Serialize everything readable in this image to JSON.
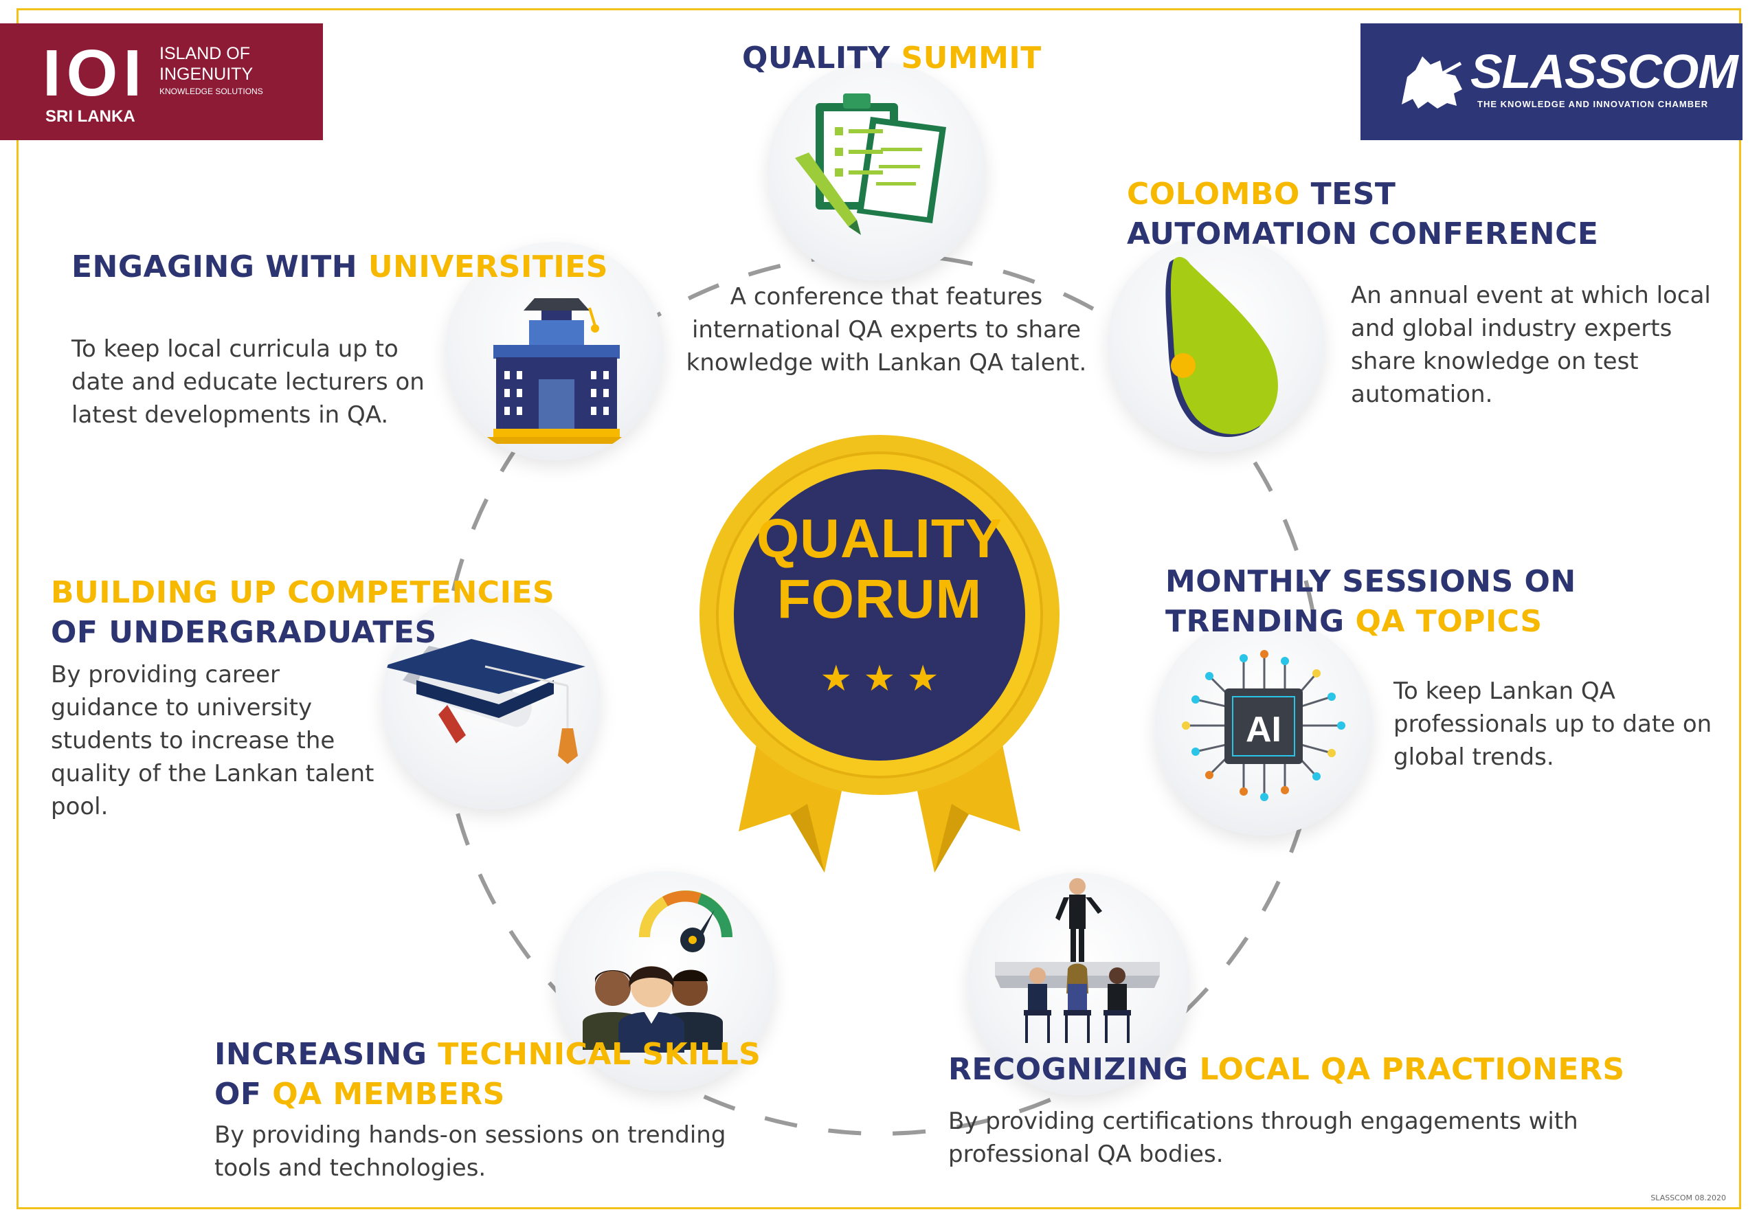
{
  "logos": {
    "left": {
      "big": "IOI",
      "line1": "ISLAND OF",
      "line2": "INGENUITY",
      "line3": "KNOWLEDGE SOLUTIONS",
      "line4": "SRI LANKA"
    },
    "right": {
      "name": "SLASSCOM",
      "tagline": "THE KNOWLEDGE AND INNOVATION CHAMBER"
    }
  },
  "center": {
    "line1": "QUALITY",
    "line2": "FORUM",
    "stars": "★ ★ ★"
  },
  "summit": {
    "title_a": "QUALITY ",
    "title_b": "SUMMIT",
    "desc1": "A conference that features",
    "desc2": "international QA experts to share",
    "desc3": "knowledge with Lankan QA talent."
  },
  "colombo": {
    "title_a": "COLOMBO ",
    "title_b": "TEST",
    "title_c": "AUTOMATION CONFERENCE",
    "desc1": "An annual event at which local",
    "desc2": "and global industry experts",
    "desc3": "share knowledge on test",
    "desc4": "automation."
  },
  "universities": {
    "title_a": "ENGAGING WITH ",
    "title_b": "UNIVERSITIES",
    "desc1": "To keep local curricula up to",
    "desc2": "date and educate lecturers on",
    "desc3": "latest developments in QA."
  },
  "undergrad": {
    "title1": "BUILDING UP COMPETENCIES",
    "title2": "OF UNDERGRADUATES",
    "desc1": "By providing career",
    "desc2": "guidance to university",
    "desc3": "students to increase the",
    "desc4": "quality of the Lankan talent",
    "desc5": "pool."
  },
  "monthly": {
    "title1": "MONTHLY SESSIONS ON",
    "title2_a": "TRENDING ",
    "title2_b": "QA TOPICS",
    "chip": "AI",
    "desc1": "To keep Lankan QA",
    "desc2": "professionals up to date on",
    "desc3": "global trends."
  },
  "technical": {
    "title1_a": "INCREASING  ",
    "title1_b": "TECHNICAL SKILLS",
    "title2_a": "OF ",
    "title2_b": "QA MEMBERS",
    "desc1": "By providing hands-on sessions on trending",
    "desc2": "tools and technologies."
  },
  "recognizing": {
    "title_a": "RECOGNIZING ",
    "title_b": "LOCAL QA PRACTIONERS",
    "desc1": "By providing certifications through engagements with",
    "desc2": "professional QA bodies."
  },
  "footer": "SLASSCOM 08.2020",
  "colors": {
    "navy": "#2d3472",
    "gold": "#f7b800",
    "maroon": "#8e1b36",
    "slasscom_blue": "#2d3677"
  }
}
